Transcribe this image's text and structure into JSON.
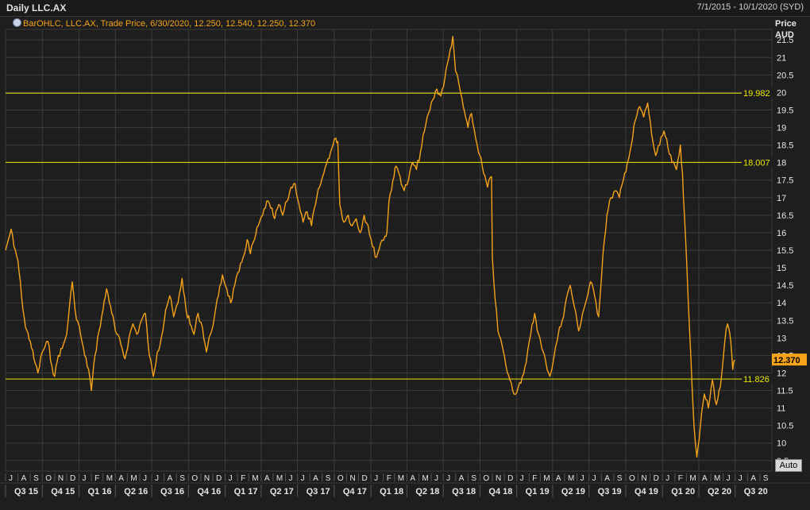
{
  "header": {
    "title": "Daily LLC.AX",
    "date_range": "7/1/2015 - 10/1/2020 (SYD)",
    "legend": "BarOHLC, LLC.AX, Trade Price, 6/30/2020, 12.250, 12.540, 12.250, 12.370",
    "legend_icon": "ohlc-bar-icon"
  },
  "controls": {
    "auto_label": "Auto"
  },
  "colors": {
    "background": "#1e1e1e",
    "grid": "#3c3c3c",
    "series": "#f5a31a",
    "hline": "#e8e800",
    "last_price_bg": "#f5a31a"
  },
  "chart_data": {
    "type": "line",
    "title": "Daily LLC.AX",
    "series": [
      {
        "name": "LLC.AX",
        "points": [
          [
            "2015-07-01",
            15.5
          ],
          [
            "2015-07-08",
            15.8
          ],
          [
            "2015-07-15",
            16.1
          ],
          [
            "2015-07-22",
            15.6
          ],
          [
            "2015-08-01",
            15.2
          ],
          [
            "2015-08-10",
            14.2
          ],
          [
            "2015-08-20",
            13.3
          ],
          [
            "2015-09-01",
            12.9
          ],
          [
            "2015-09-10",
            12.4
          ],
          [
            "2015-09-20",
            12.0
          ],
          [
            "2015-10-01",
            12.6
          ],
          [
            "2015-10-15",
            12.9
          ],
          [
            "2015-10-25",
            12.2
          ],
          [
            "2015-11-01",
            11.9
          ],
          [
            "2015-11-10",
            12.5
          ],
          [
            "2015-11-20",
            12.7
          ],
          [
            "2015-12-01",
            13.1
          ],
          [
            "2015-12-08",
            13.9
          ],
          [
            "2015-12-15",
            14.6
          ],
          [
            "2015-12-22",
            13.8
          ],
          [
            "2016-01-05",
            13.1
          ],
          [
            "2016-01-15",
            12.5
          ],
          [
            "2016-01-25",
            12.1
          ],
          [
            "2016-02-01",
            11.5
          ],
          [
            "2016-02-10",
            12.5
          ],
          [
            "2016-02-20",
            13.2
          ],
          [
            "2016-03-01",
            13.8
          ],
          [
            "2016-03-10",
            14.4
          ],
          [
            "2016-03-20",
            13.9
          ],
          [
            "2016-04-01",
            13.2
          ],
          [
            "2016-04-15",
            12.8
          ],
          [
            "2016-04-25",
            12.4
          ],
          [
            "2016-05-05",
            13.0
          ],
          [
            "2016-05-15",
            13.4
          ],
          [
            "2016-05-25",
            13.1
          ],
          [
            "2016-06-05",
            13.5
          ],
          [
            "2016-06-15",
            13.7
          ],
          [
            "2016-06-25",
            12.5
          ],
          [
            "2016-07-05",
            11.9
          ],
          [
            "2016-07-15",
            12.6
          ],
          [
            "2016-07-25",
            13.0
          ],
          [
            "2016-08-05",
            13.8
          ],
          [
            "2016-08-15",
            14.2
          ],
          [
            "2016-08-25",
            13.6
          ],
          [
            "2016-09-05",
            14.0
          ],
          [
            "2016-09-15",
            14.7
          ],
          [
            "2016-09-25",
            13.8
          ],
          [
            "2016-10-05",
            13.4
          ],
          [
            "2016-10-15",
            13.1
          ],
          [
            "2016-10-25",
            13.7
          ],
          [
            "2016-11-05",
            13.3
          ],
          [
            "2016-11-15",
            12.6
          ],
          [
            "2016-11-25",
            13.1
          ],
          [
            "2016-12-05",
            13.6
          ],
          [
            "2016-12-15",
            14.2
          ],
          [
            "2016-12-25",
            14.8
          ],
          [
            "2017-01-05",
            14.4
          ],
          [
            "2017-01-15",
            14.0
          ],
          [
            "2017-01-25",
            14.5
          ],
          [
            "2017-02-05",
            14.9
          ],
          [
            "2017-02-15",
            15.3
          ],
          [
            "2017-02-25",
            15.8
          ],
          [
            "2017-03-05",
            15.4
          ],
          [
            "2017-03-15",
            15.8
          ],
          [
            "2017-03-25",
            16.2
          ],
          [
            "2017-04-05",
            16.5
          ],
          [
            "2017-04-15",
            16.9
          ],
          [
            "2017-04-25",
            16.7
          ],
          [
            "2017-05-05",
            16.4
          ],
          [
            "2017-05-15",
            16.8
          ],
          [
            "2017-05-25",
            16.5
          ],
          [
            "2017-06-05",
            16.9
          ],
          [
            "2017-06-15",
            17.3
          ],
          [
            "2017-06-25",
            17.4
          ],
          [
            "2017-07-05",
            16.8
          ],
          [
            "2017-07-15",
            16.3
          ],
          [
            "2017-07-25",
            16.6
          ],
          [
            "2017-08-05",
            16.2
          ],
          [
            "2017-08-15",
            16.8
          ],
          [
            "2017-08-25",
            17.3
          ],
          [
            "2017-09-05",
            17.7
          ],
          [
            "2017-09-15",
            18.1
          ],
          [
            "2017-09-25",
            18.4
          ],
          [
            "2017-10-05",
            18.7
          ],
          [
            "2017-10-10",
            18.6
          ],
          [
            "2017-10-15",
            16.8
          ],
          [
            "2017-10-25",
            16.3
          ],
          [
            "2017-11-05",
            16.5
          ],
          [
            "2017-11-15",
            16.2
          ],
          [
            "2017-11-25",
            16.4
          ],
          [
            "2017-12-05",
            16.0
          ],
          [
            "2017-12-15",
            16.5
          ],
          [
            "2017-12-25",
            16.2
          ],
          [
            "2018-01-05",
            15.6
          ],
          [
            "2018-01-15",
            15.3
          ],
          [
            "2018-01-25",
            15.7
          ],
          [
            "2018-02-05",
            15.9
          ],
          [
            "2018-02-10",
            16.0
          ],
          [
            "2018-02-15",
            16.9
          ],
          [
            "2018-02-25",
            17.5
          ],
          [
            "2018-03-05",
            17.9
          ],
          [
            "2018-03-15",
            17.6
          ],
          [
            "2018-03-25",
            17.2
          ],
          [
            "2018-04-05",
            17.5
          ],
          [
            "2018-04-15",
            18.0
          ],
          [
            "2018-04-25",
            17.8
          ],
          [
            "2018-05-05",
            18.3
          ],
          [
            "2018-05-15",
            18.9
          ],
          [
            "2018-05-25",
            19.4
          ],
          [
            "2018-06-05",
            19.8
          ],
          [
            "2018-06-15",
            20.1
          ],
          [
            "2018-06-25",
            19.9
          ],
          [
            "2018-07-05",
            20.4
          ],
          [
            "2018-07-15",
            21.0
          ],
          [
            "2018-07-25",
            21.6
          ],
          [
            "2018-08-01",
            20.6
          ],
          [
            "2018-08-10",
            20.2
          ],
          [
            "2018-08-20",
            19.6
          ],
          [
            "2018-09-01",
            19.0
          ],
          [
            "2018-09-10",
            19.4
          ],
          [
            "2018-09-20",
            18.7
          ],
          [
            "2018-10-01",
            18.2
          ],
          [
            "2018-10-10",
            17.7
          ],
          [
            "2018-10-20",
            17.3
          ],
          [
            "2018-10-30",
            17.6
          ],
          [
            "2018-11-01",
            15.3
          ],
          [
            "2018-11-08",
            14.1
          ],
          [
            "2018-11-15",
            13.2
          ],
          [
            "2018-11-25",
            12.8
          ],
          [
            "2018-12-05",
            12.2
          ],
          [
            "2018-12-15",
            11.8
          ],
          [
            "2018-12-25",
            11.4
          ],
          [
            "2019-01-05",
            11.6
          ],
          [
            "2019-01-15",
            11.9
          ],
          [
            "2019-01-25",
            12.3
          ],
          [
            "2019-02-05",
            13.1
          ],
          [
            "2019-02-15",
            13.7
          ],
          [
            "2019-02-25",
            13.1
          ],
          [
            "2019-03-05",
            12.7
          ],
          [
            "2019-03-15",
            12.3
          ],
          [
            "2019-03-25",
            11.9
          ],
          [
            "2019-04-05",
            12.5
          ],
          [
            "2019-04-15",
            13.1
          ],
          [
            "2019-04-25",
            13.5
          ],
          [
            "2019-05-05",
            14.1
          ],
          [
            "2019-05-15",
            14.5
          ],
          [
            "2019-05-25",
            13.9
          ],
          [
            "2019-06-05",
            13.2
          ],
          [
            "2019-06-15",
            13.7
          ],
          [
            "2019-06-25",
            14.1
          ],
          [
            "2019-07-05",
            14.6
          ],
          [
            "2019-07-15",
            14.2
          ],
          [
            "2019-07-25",
            13.6
          ],
          [
            "2019-08-05",
            15.4
          ],
          [
            "2019-08-15",
            16.5
          ],
          [
            "2019-08-25",
            17.0
          ],
          [
            "2019-09-05",
            17.2
          ],
          [
            "2019-09-15",
            17.0
          ],
          [
            "2019-09-25",
            17.5
          ],
          [
            "2019-10-05",
            18.0
          ],
          [
            "2019-10-15",
            18.5
          ],
          [
            "2019-10-25",
            19.2
          ],
          [
            "2019-11-05",
            19.6
          ],
          [
            "2019-11-15",
            19.3
          ],
          [
            "2019-11-25",
            19.7
          ],
          [
            "2019-12-05",
            18.8
          ],
          [
            "2019-12-15",
            18.2
          ],
          [
            "2019-12-25",
            18.5
          ],
          [
            "2020-01-05",
            18.9
          ],
          [
            "2020-01-15",
            18.4
          ],
          [
            "2020-01-25",
            18.0
          ],
          [
            "2020-02-05",
            17.8
          ],
          [
            "2020-02-15",
            18.5
          ],
          [
            "2020-02-20",
            17.7
          ],
          [
            "2020-02-25",
            16.5
          ],
          [
            "2020-03-05",
            14.2
          ],
          [
            "2020-03-12",
            12.5
          ],
          [
            "2020-03-20",
            10.5
          ],
          [
            "2020-03-27",
            9.6
          ],
          [
            "2020-04-05",
            10.5
          ],
          [
            "2020-04-15",
            11.4
          ],
          [
            "2020-04-25",
            11.0
          ],
          [
            "2020-05-05",
            11.8
          ],
          [
            "2020-05-15",
            11.1
          ],
          [
            "2020-05-25",
            11.6
          ],
          [
            "2020-06-05",
            12.9
          ],
          [
            "2020-06-12",
            13.4
          ],
          [
            "2020-06-20",
            12.9
          ],
          [
            "2020-06-25",
            12.1
          ],
          [
            "2020-06-30",
            12.37
          ]
        ]
      }
    ],
    "x_range": [
      "2015-07-01",
      "2020-10-01"
    ],
    "y_axis": {
      "label_line1": "Price",
      "label_line2": "AUD",
      "ylim": [
        9.2,
        21.8
      ],
      "ticks": [
        9.5,
        10,
        10.5,
        11,
        11.5,
        12,
        12.5,
        13,
        13.5,
        14,
        14.5,
        15,
        15.5,
        16,
        16.5,
        17,
        17.5,
        18,
        18.5,
        19,
        19.5,
        20,
        20.5,
        21,
        21.5
      ],
      "position": "right"
    },
    "h_lines": [
      19.982,
      18.007,
      11.826
    ],
    "last_price": "12.370",
    "x_axis": {
      "months": [
        "J",
        "A",
        "S",
        "O",
        "N",
        "D",
        "J",
        "F",
        "M",
        "A",
        "M",
        "J",
        "J",
        "A",
        "S",
        "O",
        "N",
        "D",
        "J",
        "F",
        "M",
        "A",
        "M",
        "J",
        "J",
        "A",
        "S",
        "O",
        "N",
        "D",
        "J",
        "F",
        "M",
        "A",
        "M",
        "J",
        "J",
        "A",
        "S",
        "O",
        "N",
        "D",
        "J",
        "F",
        "M",
        "A",
        "M",
        "J",
        "J",
        "A",
        "S",
        "O",
        "N",
        "D",
        "J",
        "F",
        "M",
        "A",
        "M",
        "J",
        "J",
        "A",
        "S"
      ],
      "quarters": [
        "Q3 15",
        "Q4 15",
        "Q1 16",
        "Q2 16",
        "Q3 16",
        "Q4 16",
        "Q1 17",
        "Q2 17",
        "Q3 17",
        "Q4 17",
        "Q1 18",
        "Q2 18",
        "Q3 18",
        "Q4 18",
        "Q1 19",
        "Q2 19",
        "Q3 19",
        "Q4 19",
        "Q1 20",
        "Q2 20",
        "Q3 20"
      ]
    },
    "grid": true
  }
}
